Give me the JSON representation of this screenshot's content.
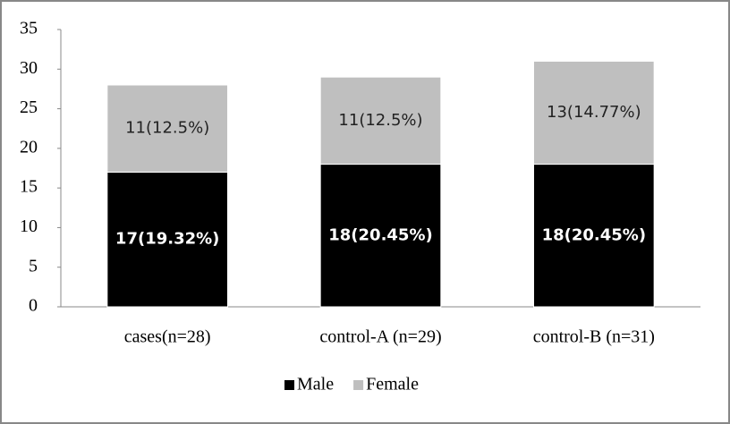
{
  "chart_data": {
    "type": "stacked-bar",
    "categories": [
      "cases(n=28)",
      "control-A (n=29)",
      "control-B (n=31)"
    ],
    "series": [
      {
        "name": "Male",
        "color": "#000000",
        "values": [
          17,
          18,
          18
        ],
        "value_labels": [
          "17(19.32%)",
          "18(20.45%)",
          "18(20.45%)"
        ]
      },
      {
        "name": "Female",
        "color": "#bfbfbf",
        "values": [
          11,
          11,
          13
        ],
        "value_labels": [
          "11(12.5%)",
          "11(12.5%)",
          "13(14.77%)"
        ]
      }
    ],
    "ylim": [
      0,
      35
    ],
    "yticks": [
      0,
      5,
      10,
      15,
      20,
      25,
      30,
      35
    ],
    "grid": false,
    "legend": "bottom"
  }
}
